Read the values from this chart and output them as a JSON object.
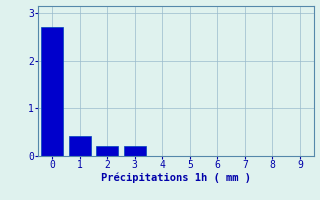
{
  "bar_positions": [
    0,
    1,
    2,
    3,
    4,
    5,
    6,
    7,
    8,
    9
  ],
  "bar_heights": [
    2.7,
    0.42,
    0.2,
    0.2,
    0,
    0,
    0,
    0,
    0,
    0
  ],
  "bar_width": 0.8,
  "bar_color": "#0000cc",
  "bar_edge_color": "#0044bb",
  "xlim": [
    -0.5,
    9.5
  ],
  "ylim": [
    0,
    3.15
  ],
  "xticks": [
    0,
    1,
    2,
    3,
    4,
    5,
    6,
    7,
    8,
    9
  ],
  "yticks": [
    0,
    1,
    2,
    3
  ],
  "xlabel": "Précipitations 1h ( mm )",
  "xlabel_color": "#0000aa",
  "xlabel_fontsize": 7.5,
  "tick_color": "#0000aa",
  "tick_fontsize": 7,
  "background_color": "#dff2ee",
  "plot_bg_color": "#dff2ee",
  "grid_color": "#99bbcc",
  "grid_alpha": 1.0,
  "grid_linewidth": 0.5,
  "spine_color": "#5588aa"
}
